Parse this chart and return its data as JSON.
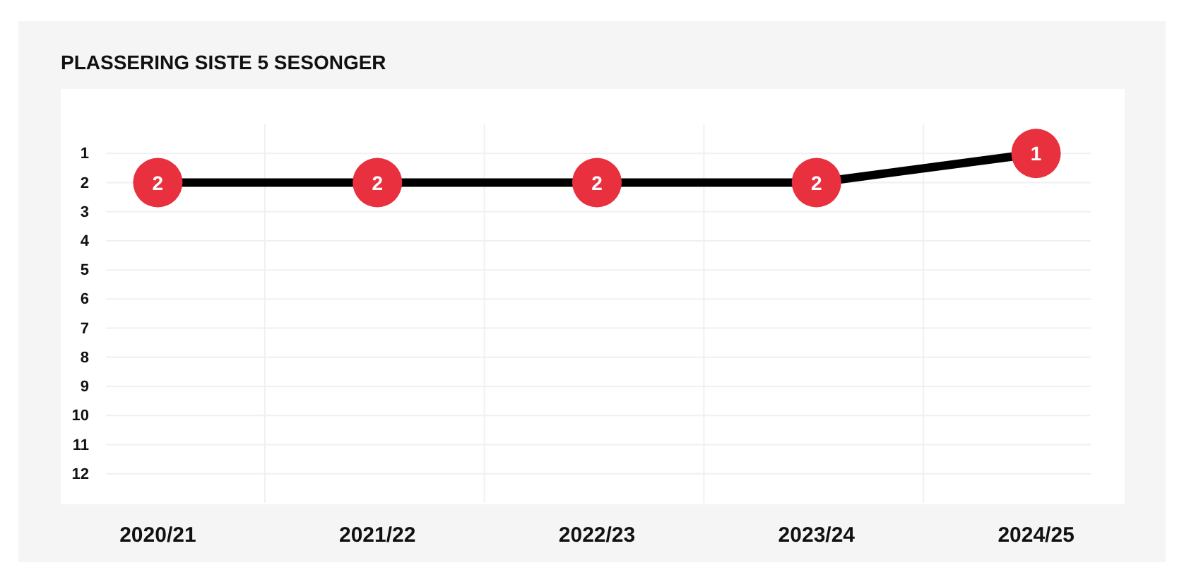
{
  "chart_data": {
    "type": "line",
    "title": "PLASSERING SISTE 5 SESONGER",
    "categories": [
      "2020/21",
      "2021/22",
      "2022/23",
      "2023/24",
      "2024/25"
    ],
    "series": [
      {
        "color": "#000000",
        "colors": [
          "#e8303e",
          "#e8303e",
          "#e8303e",
          "#e8303e",
          "#e8303e"
        ],
        "values": [
          2,
          2,
          2,
          2,
          1
        ]
      }
    ],
    "ylim": [
      13,
      0
    ],
    "yticks": [
      1,
      2,
      3,
      4,
      5,
      6,
      7,
      8,
      9,
      10,
      11,
      12
    ],
    "grid": true,
    "marker": "circle",
    "data_labels": true
  }
}
